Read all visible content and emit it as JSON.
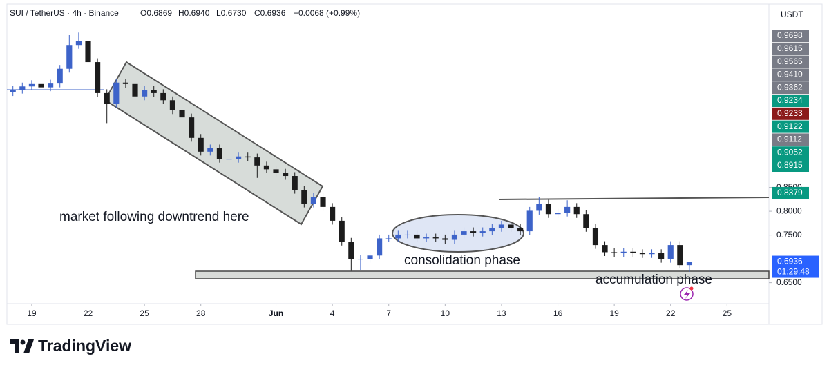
{
  "header": {
    "symbol": "SUI / TetherUS · 4h · Binance",
    "open": "O0.6869",
    "high": "H0.6940",
    "low": "L0.6730",
    "close": "C0.6936",
    "change": "+0.0068 (+0.99%)"
  },
  "chart_data": {
    "type": "candlestick",
    "currency": "USDT",
    "x": [
      -1,
      -0.5,
      0,
      0.5,
      1,
      1.5,
      2,
      2.5,
      3,
      3.5,
      4,
      4.5,
      5,
      5.5,
      6,
      6.5,
      7,
      7.5,
      8,
      8.5,
      9,
      9.5,
      10,
      10.5,
      11,
      11.5,
      12,
      12.5,
      13,
      13.5,
      14,
      14.5,
      15,
      15.5,
      16,
      16.5,
      17,
      17.5,
      18,
      18.5,
      19,
      19.5,
      20,
      20.5,
      21,
      21.5,
      22,
      22.5,
      23,
      23.5,
      24,
      24.5,
      25,
      25.5,
      26,
      26.5,
      27,
      27.5,
      28,
      28.5,
      29,
      29.5,
      30,
      30.5,
      31,
      31.5,
      32,
      32.5,
      33,
      33.5,
      34,
      34.5,
      35
    ],
    "open": [
      1.05,
      1.055,
      1.062,
      1.067,
      1.06,
      1.068,
      1.099,
      1.149,
      1.157,
      1.113,
      1.048,
      1.026,
      1.07,
      1.067,
      1.041,
      1.055,
      1.048,
      1.033,
      1.012,
      0.997,
      0.954,
      0.925,
      0.932,
      0.91,
      0.91,
      0.915,
      0.913,
      0.896,
      0.888,
      0.881,
      0.874,
      0.845,
      0.816,
      0.83,
      0.809,
      0.78,
      0.736,
      0.7,
      0.7,
      0.707,
      0.743,
      0.743,
      0.751,
      0.751,
      0.743,
      0.745,
      0.743,
      0.74,
      0.751,
      0.758,
      0.755,
      0.758,
      0.765,
      0.772,
      0.765,
      0.758,
      0.801,
      0.816,
      0.794,
      0.797,
      0.809,
      0.794,
      0.765,
      0.729,
      0.714,
      0.712,
      0.715,
      0.712,
      0.71,
      0.712,
      0.7,
      0.729,
      0.6869
    ],
    "high": [
      1.063,
      1.07,
      1.075,
      1.075,
      1.076,
      1.107,
      1.17,
      1.175,
      1.165,
      1.121,
      1.056,
      1.078,
      1.078,
      1.075,
      1.063,
      1.063,
      1.056,
      1.041,
      1.02,
      1.005,
      0.962,
      0.94,
      0.94,
      0.918,
      0.923,
      0.923,
      0.921,
      0.904,
      0.896,
      0.889,
      0.882,
      0.853,
      0.838,
      0.838,
      0.817,
      0.788,
      0.744,
      0.708,
      0.715,
      0.751,
      0.751,
      0.759,
      0.759,
      0.759,
      0.753,
      0.753,
      0.751,
      0.759,
      0.766,
      0.766,
      0.766,
      0.773,
      0.78,
      0.78,
      0.773,
      0.809,
      0.83,
      0.824,
      0.805,
      0.823,
      0.817,
      0.802,
      0.773,
      0.737,
      0.722,
      0.723,
      0.723,
      0.72,
      0.72,
      0.72,
      0.737,
      0.737,
      0.694
    ],
    "low": [
      1.042,
      1.047,
      1.054,
      1.052,
      1.052,
      1.06,
      1.091,
      1.141,
      1.105,
      1.04,
      0.985,
      1.018,
      1.059,
      1.033,
      1.033,
      1.04,
      1.025,
      1.004,
      0.989,
      0.946,
      0.917,
      0.917,
      0.902,
      0.902,
      0.902,
      0.905,
      0.87,
      0.88,
      0.873,
      0.866,
      0.837,
      0.808,
      0.808,
      0.801,
      0.772,
      0.728,
      0.675,
      0.676,
      0.692,
      0.699,
      0.735,
      0.735,
      0.743,
      0.735,
      0.735,
      0.735,
      0.732,
      0.732,
      0.743,
      0.747,
      0.747,
      0.75,
      0.757,
      0.757,
      0.75,
      0.75,
      0.793,
      0.786,
      0.786,
      0.789,
      0.786,
      0.757,
      0.721,
      0.706,
      0.704,
      0.704,
      0.704,
      0.702,
      0.702,
      0.692,
      0.692,
      0.68,
      0.673
    ],
    "close": [
      1.055,
      1.062,
      1.067,
      1.06,
      1.068,
      1.099,
      1.149,
      1.157,
      1.113,
      1.048,
      1.026,
      1.07,
      1.067,
      1.041,
      1.055,
      1.048,
      1.033,
      1.012,
      0.997,
      0.954,
      0.925,
      0.932,
      0.91,
      0.91,
      0.915,
      0.913,
      0.896,
      0.888,
      0.881,
      0.874,
      0.845,
      0.816,
      0.83,
      0.809,
      0.78,
      0.736,
      0.7,
      0.7,
      0.707,
      0.743,
      0.743,
      0.751,
      0.751,
      0.743,
      0.745,
      0.743,
      0.74,
      0.751,
      0.758,
      0.755,
      0.758,
      0.765,
      0.772,
      0.765,
      0.758,
      0.801,
      0.816,
      0.794,
      0.797,
      0.809,
      0.794,
      0.765,
      0.729,
      0.714,
      0.712,
      0.715,
      0.712,
      0.71,
      0.712,
      0.7,
      0.729,
      0.6869,
      0.6936
    ],
    "up_color": "#3d63c9",
    "down_color": "#1c1c1c",
    "xlim": [
      -1.32,
      39.23
    ],
    "xticks": [
      {
        "value": 0,
        "label": "19"
      },
      {
        "value": 3,
        "label": "22"
      },
      {
        "value": 6,
        "label": "25"
      },
      {
        "value": 9,
        "label": "28"
      },
      {
        "value": 13,
        "label": "Jun"
      },
      {
        "value": 16,
        "label": "4"
      },
      {
        "value": 19,
        "label": "7"
      },
      {
        "value": 22,
        "label": "10"
      },
      {
        "value": 25,
        "label": "13"
      },
      {
        "value": 28,
        "label": "16"
      },
      {
        "value": 31,
        "label": "19"
      },
      {
        "value": 34,
        "label": "22"
      },
      {
        "value": 37,
        "label": "25"
      }
    ],
    "ylim": [
      0.606,
      1.229
    ],
    "yticks": [
      {
        "value": 0.65,
        "label": "0.6500"
      },
      {
        "value": 0.75,
        "label": "0.7500"
      },
      {
        "value": 0.8,
        "label": "0.8000"
      },
      {
        "value": 0.85,
        "label": "0.8500"
      }
    ],
    "price_labels": [
      {
        "label": "0.9698",
        "color": "#787b86"
      },
      {
        "label": "0.9615",
        "color": "#787b86"
      },
      {
        "label": "0.9565",
        "color": "#787b86"
      },
      {
        "label": "0.9410",
        "color": "#787b86"
      },
      {
        "label": "0.9362",
        "color": "#787b86"
      },
      {
        "label": "0.9234",
        "color": "#089981"
      },
      {
        "label": "0.9233",
        "color": "#8b1a1a"
      },
      {
        "label": "0.9122",
        "color": "#089981"
      },
      {
        "label": "0.9112",
        "color": "#787b86"
      },
      {
        "label": "0.9052",
        "color": "#089981"
      },
      {
        "label": "0.8915",
        "color": "#089981"
      }
    ],
    "level_label": {
      "value": 0.8379,
      "label": "0.8379",
      "color": "#089981"
    },
    "last_price": {
      "value": 0.6936,
      "label": "0.6936",
      "countdown": "01:29:48",
      "color": "#2962ff"
    },
    "annotations": [
      "market following downtrend here",
      "consolidation phase",
      "accumulation phase"
    ]
  },
  "brand": "TradingView"
}
